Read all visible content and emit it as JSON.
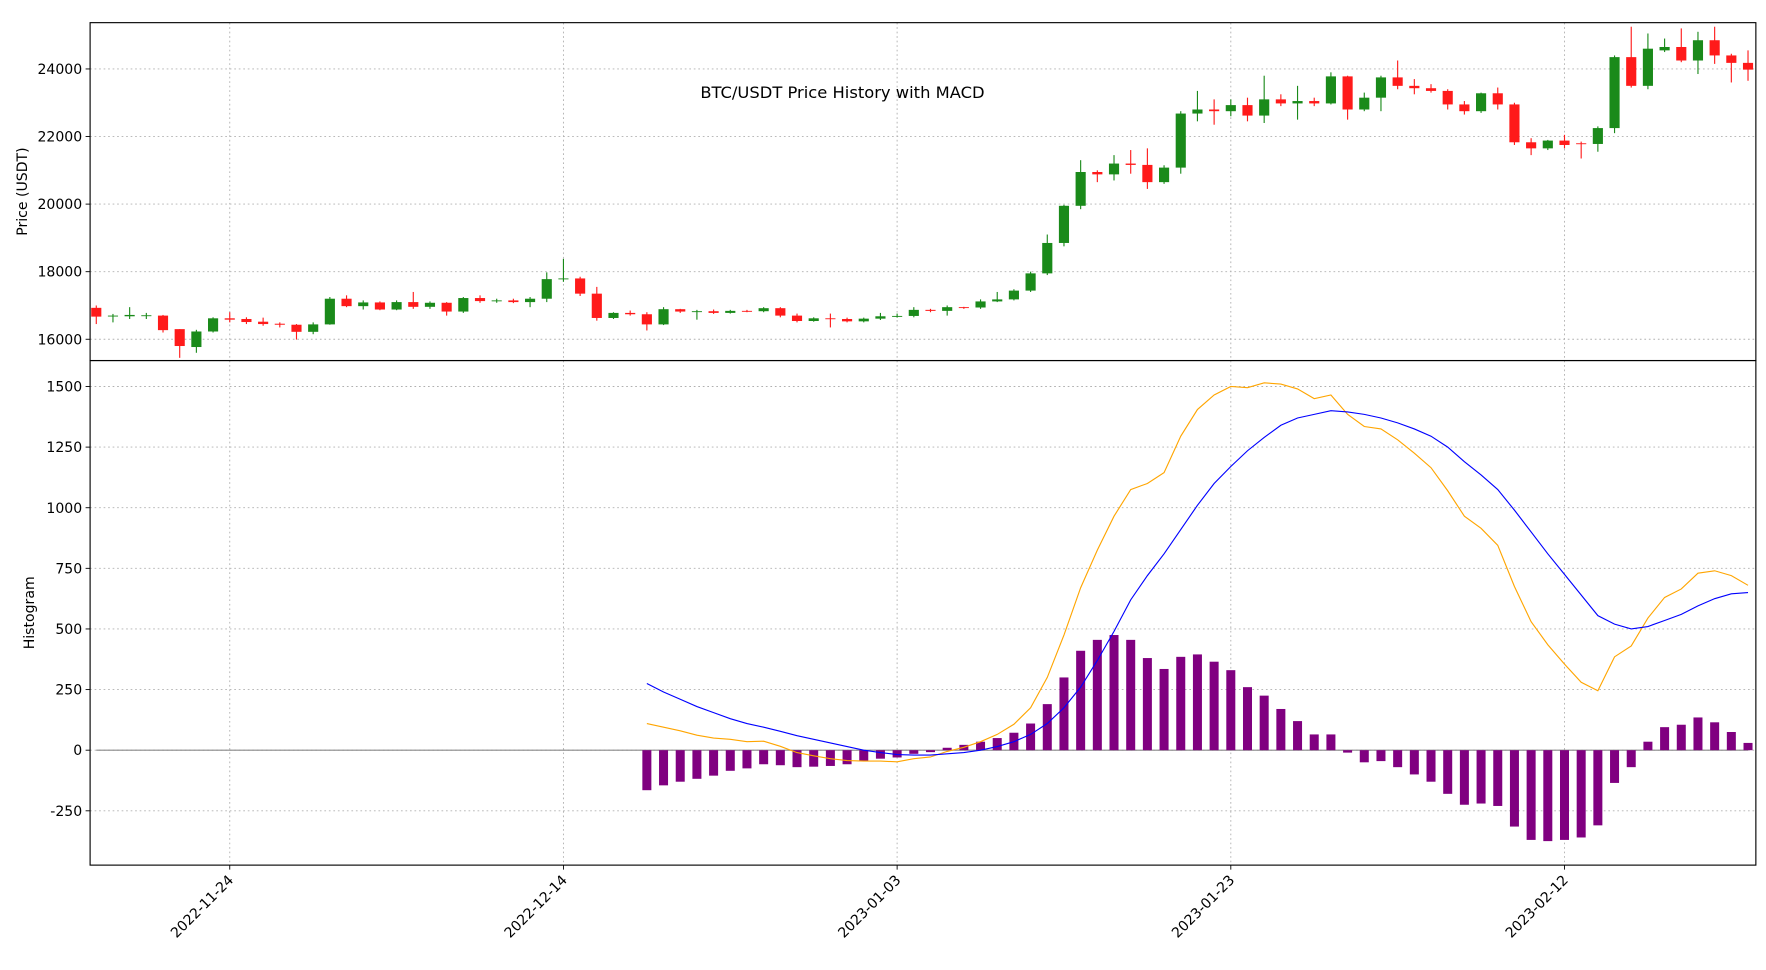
{
  "chart_data": [
    {
      "type": "candlestick",
      "title": "BTC/USDT Price History with MACD",
      "ylabel": "Price (USDT)",
      "x": [
        "2022-11-16",
        "2022-11-17",
        "2022-11-18",
        "2022-11-19",
        "2022-11-20",
        "2022-11-21",
        "2022-11-22",
        "2022-11-23",
        "2022-11-24",
        "2022-11-25",
        "2022-11-26",
        "2022-11-27",
        "2022-11-28",
        "2022-11-29",
        "2022-11-30",
        "2022-12-01",
        "2022-12-02",
        "2022-12-03",
        "2022-12-04",
        "2022-12-05",
        "2022-12-06",
        "2022-12-07",
        "2022-12-08",
        "2022-12-09",
        "2022-12-10",
        "2022-12-11",
        "2022-12-12",
        "2022-12-13",
        "2022-12-14",
        "2022-12-15",
        "2022-12-16",
        "2022-12-17",
        "2022-12-18",
        "2022-12-19",
        "2022-12-20",
        "2022-12-21",
        "2022-12-22",
        "2022-12-23",
        "2022-12-24",
        "2022-12-25",
        "2022-12-26",
        "2022-12-27",
        "2022-12-28",
        "2022-12-29",
        "2022-12-30",
        "2022-12-31",
        "2023-01-01",
        "2023-01-02",
        "2023-01-03",
        "2023-01-04",
        "2023-01-05",
        "2023-01-06",
        "2023-01-07",
        "2023-01-08",
        "2023-01-09",
        "2023-01-10",
        "2023-01-11",
        "2023-01-12",
        "2023-01-13",
        "2023-01-14",
        "2023-01-15",
        "2023-01-16",
        "2023-01-17",
        "2023-01-18",
        "2023-01-19",
        "2023-01-20",
        "2023-01-21",
        "2023-01-22",
        "2023-01-23",
        "2023-01-24",
        "2023-01-25",
        "2023-01-26",
        "2023-01-27",
        "2023-01-28",
        "2023-01-29",
        "2023-01-30",
        "2023-01-31",
        "2023-02-01",
        "2023-02-02",
        "2023-02-03",
        "2023-02-04",
        "2023-02-05",
        "2023-02-06",
        "2023-02-07",
        "2023-02-08",
        "2023-02-09",
        "2023-02-10",
        "2023-02-11",
        "2023-02-12",
        "2023-02-13",
        "2023-02-14",
        "2023-02-15",
        "2023-02-16",
        "2023-02-17",
        "2023-02-18",
        "2023-02-19",
        "2023-02-20",
        "2023-02-21",
        "2023-02-22",
        "2023-02-23"
      ],
      "open": [
        16930,
        16680,
        16680,
        16700,
        16700,
        16300,
        15770,
        16230,
        16620,
        16600,
        16520,
        16460,
        16430,
        16220,
        16440,
        17200,
        16980,
        17090,
        16880,
        17100,
        16960,
        17080,
        16820,
        17220,
        17130,
        17150,
        17100,
        17200,
        17780,
        17800,
        17350,
        16630,
        16780,
        16740,
        16440,
        16890,
        16820,
        16830,
        16780,
        16840,
        16830,
        16920,
        16700,
        16540,
        16620,
        16600,
        16530,
        16610,
        16680,
        16690,
        16870,
        16840,
        16950,
        16940,
        17120,
        17180,
        17440,
        17950,
        18850,
        19950,
        20950,
        20880,
        21200,
        21160,
        20650,
        21080,
        22680,
        22800,
        22750,
        22930,
        22620,
        23100,
        22980,
        23050,
        22980,
        23780,
        22800,
        23150,
        23750,
        23500,
        23430,
        23350,
        22950,
        22750,
        23280,
        22950,
        21830,
        21650,
        21880,
        21800,
        21780,
        22250,
        24350,
        23500,
        24550,
        24650,
        24250,
        24850,
        24400,
        24180
      ],
      "high": [
        17000,
        16750,
        16950,
        16780,
        16720,
        16300,
        16280,
        16650,
        16800,
        16650,
        16640,
        16500,
        16450,
        16500,
        17250,
        17300,
        17150,
        17120,
        17150,
        17400,
        17120,
        17100,
        17250,
        17300,
        17200,
        17200,
        17250,
        17980,
        18380,
        17850,
        17550,
        16800,
        16850,
        16800,
        16950,
        16900,
        16870,
        16880,
        16870,
        16870,
        16950,
        16950,
        16760,
        16650,
        16760,
        16640,
        16640,
        16780,
        16760,
        16950,
        16900,
        17000,
        16960,
        17180,
        17400,
        17480,
        18000,
        19100,
        19980,
        21300,
        21000,
        21450,
        21600,
        21650,
        21150,
        22750,
        23350,
        23100,
        23100,
        23150,
        23800,
        23250,
        23500,
        23150,
        23900,
        23800,
        23300,
        23800,
        24250,
        23700,
        23550,
        23400,
        23050,
        23300,
        23450,
        23000,
        21950,
        21900,
        22050,
        21850,
        22300,
        24400,
        25250,
        25050,
        24900,
        25200,
        25100,
        25250,
        24450,
        24550
      ],
      "low": [
        16450,
        16500,
        16600,
        16600,
        16200,
        15450,
        15600,
        16200,
        16500,
        16450,
        16400,
        16350,
        15990,
        16150,
        16430,
        16950,
        16880,
        16860,
        16860,
        16900,
        16900,
        16700,
        16780,
        17080,
        17080,
        17070,
        16950,
        17100,
        17700,
        17280,
        16550,
        16600,
        16700,
        16260,
        16420,
        16780,
        16580,
        16750,
        16760,
        16800,
        16800,
        16650,
        16500,
        16520,
        16350,
        16500,
        16500,
        16570,
        16640,
        16650,
        16800,
        16700,
        16900,
        16900,
        17100,
        17150,
        17400,
        17900,
        18750,
        19850,
        20650,
        20700,
        20900,
        20450,
        20600,
        20900,
        22450,
        22350,
        22600,
        22450,
        22400,
        22900,
        22500,
        22900,
        22950,
        22500,
        22750,
        22750,
        23400,
        23250,
        23300,
        22800,
        22650,
        22700,
        22800,
        21750,
        21450,
        21600,
        21650,
        21350,
        21550,
        22100,
        23450,
        23400,
        24500,
        24200,
        23850,
        24150,
        23600,
        23650
      ],
      "close": [
        16670,
        16700,
        16720,
        16710,
        16270,
        15800,
        16230,
        16620,
        16580,
        16510,
        16450,
        16430,
        16220,
        16440,
        17200,
        16980,
        17090,
        16880,
        17100,
        16960,
        17080,
        16820,
        17220,
        17130,
        17150,
        17100,
        17200,
        17780,
        17800,
        17350,
        16630,
        16780,
        16740,
        16440,
        16890,
        16820,
        16830,
        16780,
        16840,
        16830,
        16920,
        16700,
        16540,
        16620,
        16600,
        16530,
        16610,
        16680,
        16690,
        16870,
        16840,
        16950,
        16940,
        17120,
        17180,
        17440,
        17950,
        18850,
        19950,
        20950,
        20880,
        21200,
        21160,
        20650,
        21080,
        22680,
        22800,
        22750,
        22930,
        22620,
        23100,
        22980,
        23050,
        22980,
        23780,
        22800,
        23150,
        23750,
        23500,
        23430,
        23350,
        22950,
        22750,
        23280,
        22950,
        21830,
        21650,
        21880,
        21750,
        21780,
        22250,
        24350,
        23500,
        24600,
        24650,
        24250,
        24850,
        24400,
        24180,
        23980
      ],
      "up_color": "#1a8a1a",
      "down_color": "#ff1a1a",
      "xlim": [
        "2022-11-15T15:07Z",
        "2023-02-23T11:17Z"
      ],
      "ylim": [
        15370,
        25370
      ],
      "yticks": [
        16000,
        18000,
        20000,
        22000,
        24000
      ],
      "grid": true
    },
    {
      "type": "macd",
      "ylabel": "Histogram",
      "xticks": [
        "2022-11-24",
        "2022-12-14",
        "2023-01-03",
        "2023-01-23",
        "2023-02-12"
      ],
      "ylim": [
        -474,
        1607
      ],
      "yticks": [
        -250,
        0,
        250,
        500,
        750,
        1000,
        1250,
        1500
      ],
      "grid": true,
      "series": [
        {
          "type": "bar",
          "color": "#800080",
          "values": [
            null,
            null,
            null,
            null,
            null,
            null,
            null,
            null,
            null,
            null,
            null,
            null,
            null,
            null,
            null,
            null,
            null,
            null,
            null,
            null,
            null,
            null,
            null,
            null,
            null,
            null,
            null,
            null,
            null,
            null,
            null,
            null,
            null,
            -165,
            -145,
            -130,
            -118,
            -105,
            -85,
            -75,
            -58,
            -62,
            -70,
            -68,
            -65,
            -58,
            -45,
            -35,
            -30,
            -15,
            -8,
            10,
            22,
            35,
            50,
            72,
            110,
            190,
            300,
            410,
            455,
            475,
            455,
            380,
            335,
            385,
            395,
            365,
            330,
            260,
            225,
            170,
            120,
            65,
            65,
            -10,
            -50,
            -45,
            -70,
            -100,
            -130,
            -180,
            -225,
            -220,
            -230,
            -315,
            -370,
            -375,
            -370,
            -360,
            -310,
            -135,
            -70,
            35,
            95,
            105,
            135,
            115,
            75,
            30
          ]
        },
        {
          "type": "line",
          "color": "#ffa500",
          "values": [
            null,
            null,
            null,
            null,
            null,
            null,
            null,
            null,
            null,
            null,
            null,
            null,
            null,
            null,
            null,
            null,
            null,
            null,
            null,
            null,
            null,
            null,
            null,
            null,
            null,
            null,
            null,
            null,
            null,
            null,
            null,
            null,
            null,
            110,
            95,
            80,
            62,
            50,
            45,
            35,
            37,
            16,
            -10,
            -23,
            -35,
            -43,
            -45,
            -45,
            -48,
            -35,
            -28,
            -5,
            12,
            35,
            65,
            107,
            175,
            300,
            475,
            670,
            825,
            965,
            1075,
            1100,
            1145,
            1295,
            1405,
            1465,
            1500,
            1495,
            1515,
            1510,
            1490,
            1450,
            1465,
            1385,
            1335,
            1325,
            1280,
            1225,
            1165,
            1070,
            965,
            915,
            845,
            675,
            530,
            435,
            355,
            280,
            245,
            385,
            430,
            545,
            630,
            665,
            730,
            740,
            720,
            680
          ]
        },
        {
          "type": "line",
          "color": "#0000ff",
          "values": [
            null,
            null,
            null,
            null,
            null,
            null,
            null,
            null,
            null,
            null,
            null,
            null,
            null,
            null,
            null,
            null,
            null,
            null,
            null,
            null,
            null,
            null,
            null,
            null,
            null,
            null,
            null,
            null,
            null,
            null,
            null,
            null,
            null,
            275,
            240,
            210,
            180,
            155,
            130,
            110,
            95,
            78,
            60,
            45,
            30,
            15,
            0,
            -10,
            -18,
            -20,
            -20,
            -15,
            -10,
            0,
            15,
            35,
            65,
            110,
            175,
            260,
            370,
            490,
            620,
            720,
            810,
            910,
            1010,
            1100,
            1170,
            1235,
            1290,
            1340,
            1370,
            1385,
            1400,
            1395,
            1385,
            1370,
            1350,
            1325,
            1295,
            1250,
            1190,
            1135,
            1075,
            990,
            900,
            810,
            725,
            640,
            555,
            520,
            500,
            510,
            535,
            560,
            595,
            625,
            645,
            650
          ]
        }
      ]
    }
  ]
}
